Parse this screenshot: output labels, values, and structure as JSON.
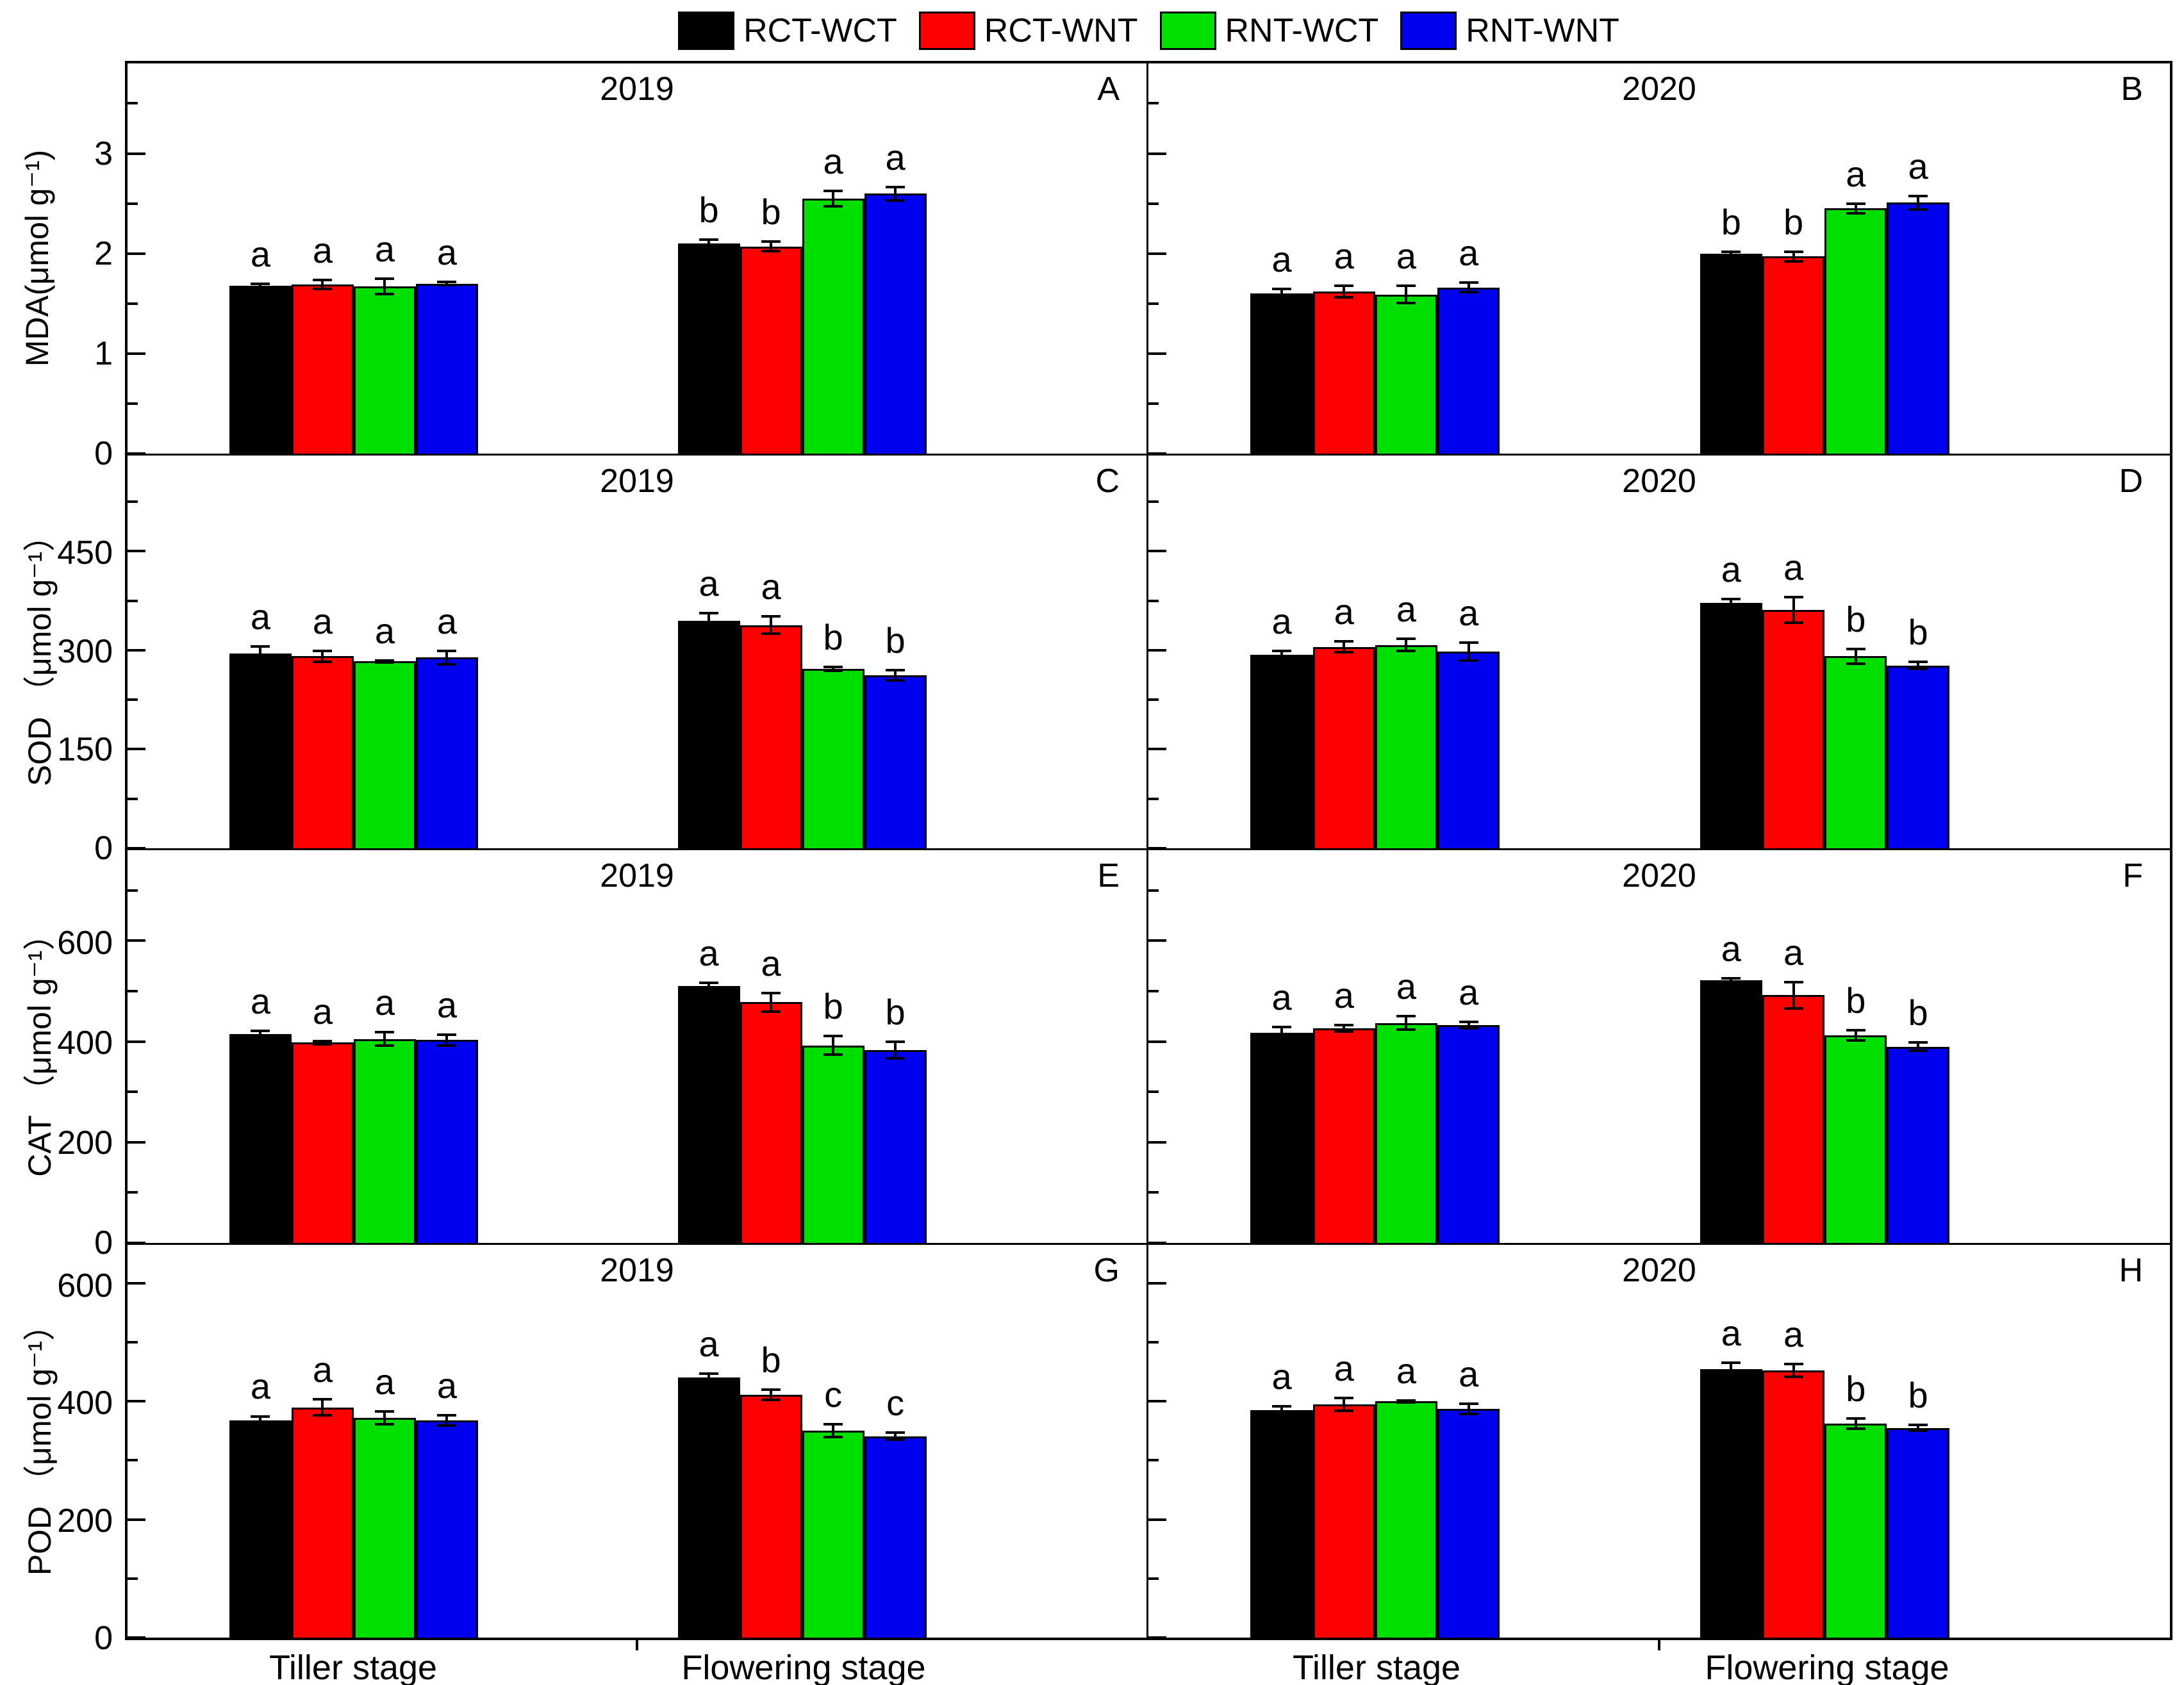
{
  "legend": {
    "items": [
      {
        "label": "RCT-WCT",
        "color": "#000000"
      },
      {
        "label": "RCT-WNT",
        "color": "#ff0000"
      },
      {
        "label": "RNT-WCT",
        "color": "#00e000"
      },
      {
        "label": "RNT-WNT",
        "color": "#0000f0"
      }
    ]
  },
  "series_colors": [
    "#000000",
    "#ff0000",
    "#00e000",
    "#0000f0"
  ],
  "x_axis": {
    "stages": [
      "Tiller stage",
      "Flowering stage"
    ]
  },
  "rows": [
    {
      "measure": "MDA",
      "ylabel": "MDA(μmol g⁻¹)",
      "ymax": 3.9,
      "major_ticks": [
        0,
        1,
        2,
        3
      ],
      "minor_step": 0.5
    },
    {
      "measure": "SOD",
      "ylabel": "SOD （μmol g⁻¹）",
      "ymax": 595,
      "major_ticks": [
        0,
        150,
        300,
        450
      ],
      "minor_step": 75
    },
    {
      "measure": "CAT",
      "ylabel": "CAT （μmol g⁻¹）",
      "ymax": 780,
      "major_ticks": [
        0,
        200,
        400,
        600
      ],
      "minor_step": 100
    },
    {
      "measure": "POD",
      "ylabel": "POD （μmol g⁻¹）",
      "ymax": 665,
      "major_ticks": [
        0,
        200,
        400,
        600
      ],
      "minor_step": 100
    }
  ],
  "chart_data": [
    {
      "id": "A",
      "type": "bar",
      "year": "2019",
      "measure": "MDA",
      "row": 0,
      "col": 0,
      "series": [
        "RCT-WCT",
        "RCT-WNT",
        "RNT-WCT",
        "RNT-WNT"
      ],
      "groups": [
        {
          "stage": "Tiller stage",
          "values": [
            1.68,
            1.69,
            1.67,
            1.7
          ],
          "errors": [
            0.03,
            0.06,
            0.09,
            0.03
          ],
          "letters": [
            "a",
            "a",
            "a",
            "a"
          ]
        },
        {
          "stage": "Flowering stage",
          "values": [
            2.1,
            2.07,
            2.55,
            2.6
          ],
          "errors": [
            0.05,
            0.06,
            0.09,
            0.08
          ],
          "letters": [
            "b",
            "b",
            "a",
            "a"
          ]
        }
      ]
    },
    {
      "id": "B",
      "type": "bar",
      "year": "2020",
      "measure": "MDA",
      "row": 0,
      "col": 1,
      "series": [
        "RCT-WCT",
        "RCT-WNT",
        "RNT-WCT",
        "RNT-WNT"
      ],
      "groups": [
        {
          "stage": "Tiller stage",
          "values": [
            1.6,
            1.62,
            1.59,
            1.66
          ],
          "errors": [
            0.06,
            0.07,
            0.1,
            0.06
          ],
          "letters": [
            "a",
            "a",
            "a",
            "a"
          ]
        },
        {
          "stage": "Flowering stage",
          "values": [
            2.0,
            1.97,
            2.45,
            2.51
          ],
          "errors": [
            0.03,
            0.06,
            0.06,
            0.08
          ],
          "letters": [
            "b",
            "b",
            "a",
            "a"
          ]
        }
      ]
    },
    {
      "id": "C",
      "type": "bar",
      "year": "2019",
      "measure": "SOD",
      "row": 1,
      "col": 0,
      "series": [
        "RCT-WCT",
        "RCT-WNT",
        "RNT-WCT",
        "RNT-WNT"
      ],
      "groups": [
        {
          "stage": "Tiller stage",
          "values": [
            295,
            291,
            283,
            289
          ],
          "errors": [
            13,
            10,
            3,
            12
          ],
          "letters": [
            "a",
            "a",
            "a",
            "a"
          ]
        },
        {
          "stage": "Flowering stage",
          "values": [
            345,
            338,
            272,
            262
          ],
          "errors": [
            13,
            15,
            5,
            10
          ],
          "letters": [
            "a",
            "a",
            "b",
            "b"
          ]
        }
      ]
    },
    {
      "id": "D",
      "type": "bar",
      "year": "2020",
      "measure": "SOD",
      "row": 1,
      "col": 1,
      "series": [
        "RCT-WCT",
        "RCT-WNT",
        "RNT-WCT",
        "RNT-WNT"
      ],
      "groups": [
        {
          "stage": "Tiller stage",
          "values": [
            293,
            305,
            308,
            298
          ],
          "errors": [
            8,
            10,
            11,
            16
          ],
          "letters": [
            "a",
            "a",
            "a",
            "a"
          ]
        },
        {
          "stage": "Flowering stage",
          "values": [
            372,
            361,
            291,
            277
          ],
          "errors": [
            8,
            21,
            13,
            7
          ],
          "letters": [
            "a",
            "a",
            "b",
            "b"
          ]
        }
      ]
    },
    {
      "id": "E",
      "type": "bar",
      "year": "2019",
      "measure": "CAT",
      "row": 2,
      "col": 0,
      "series": [
        "RCT-WCT",
        "RCT-WNT",
        "RNT-WCT",
        "RNT-WNT"
      ],
      "groups": [
        {
          "stage": "Tiller stage",
          "values": [
            415,
            398,
            405,
            403
          ],
          "errors": [
            9,
            6,
            16,
            13
          ],
          "letters": [
            "a",
            "a",
            "a",
            "a"
          ]
        },
        {
          "stage": "Flowering stage",
          "values": [
            510,
            478,
            392,
            383
          ],
          "errors": [
            9,
            21,
            21,
            19
          ],
          "letters": [
            "a",
            "a",
            "b",
            "b"
          ]
        }
      ]
    },
    {
      "id": "F",
      "type": "bar",
      "year": "2020",
      "measure": "CAT",
      "row": 2,
      "col": 1,
      "series": [
        "RCT-WCT",
        "RCT-WNT",
        "RNT-WCT",
        "RNT-WNT"
      ],
      "groups": [
        {
          "stage": "Tiller stage",
          "values": [
            418,
            426,
            437,
            433
          ],
          "errors": [
            13,
            9,
            16,
            9
          ],
          "letters": [
            "a",
            "a",
            "a",
            "a"
          ]
        },
        {
          "stage": "Flowering stage",
          "values": [
            522,
            492,
            412,
            390
          ],
          "errors": [
            6,
            29,
            13,
            11
          ],
          "letters": [
            "a",
            "a",
            "b",
            "b"
          ]
        }
      ]
    },
    {
      "id": "G",
      "type": "bar",
      "year": "2019",
      "measure": "POD",
      "row": 3,
      "col": 0,
      "series": [
        "RCT-WCT",
        "RCT-WNT",
        "RNT-WCT",
        "RNT-WNT"
      ],
      "groups": [
        {
          "stage": "Tiller stage",
          "values": [
            368,
            390,
            372,
            368
          ],
          "errors": [
            9,
            16,
            13,
            11
          ],
          "letters": [
            "a",
            "a",
            "a",
            "a"
          ]
        },
        {
          "stage": "Flowering stage",
          "values": [
            440,
            411,
            350,
            341
          ],
          "errors": [
            9,
            11,
            13,
            8
          ],
          "letters": [
            "a",
            "b",
            "c",
            "c"
          ]
        }
      ]
    },
    {
      "id": "H",
      "type": "bar",
      "year": "2020",
      "measure": "POD",
      "row": 3,
      "col": 1,
      "series": [
        "RCT-WCT",
        "RCT-WNT",
        "RNT-WCT",
        "RNT-WNT"
      ],
      "groups": [
        {
          "stage": "Tiller stage",
          "values": [
            385,
            395,
            400,
            387
          ],
          "errors": [
            9,
            13,
            4,
            11
          ],
          "letters": [
            "a",
            "a",
            "a",
            "a"
          ]
        },
        {
          "stage": "Flowering stage",
          "values": [
            455,
            452,
            362,
            355
          ],
          "errors": [
            13,
            13,
            11,
            7
          ],
          "letters": [
            "a",
            "a",
            "b",
            "b"
          ]
        }
      ]
    }
  ]
}
